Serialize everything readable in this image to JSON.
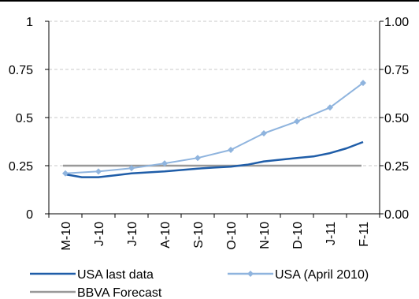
{
  "chart_data": {
    "type": "line",
    "categories": [
      "M-10",
      "J-10",
      "J-10",
      "A-10",
      "S-10",
      "O-10",
      "N-10",
      "D-10",
      "J-11",
      "F-11"
    ],
    "y_left": {
      "range": [
        0,
        1
      ],
      "ticks": [
        "0",
        "0.25",
        "0.5",
        "0.75",
        "1"
      ]
    },
    "y_right": {
      "range": [
        0,
        1
      ],
      "ticks": [
        "0.00",
        "0.25",
        "0.50",
        "0.75",
        "1.00"
      ]
    },
    "grid": "horizontal dashed",
    "legend_position": "bottom",
    "series": [
      {
        "name": "USA last data",
        "color": "#1f5da8",
        "marker": "none",
        "x": [
          0,
          0.5,
          1,
          1.5,
          2,
          3,
          4,
          4.5,
          5,
          5.5,
          6,
          7,
          7.5,
          8,
          8.5,
          9
        ],
        "values": [
          0.205,
          0.19,
          0.19,
          0.2,
          0.21,
          0.22,
          0.235,
          0.24,
          0.245,
          0.255,
          0.272,
          0.29,
          0.298,
          0.315,
          0.34,
          0.373
        ]
      },
      {
        "name": "USA (April 2010)",
        "color": "#8fb4de",
        "marker": "diamond",
        "x": [
          0,
          1,
          2,
          3,
          4,
          5,
          6,
          7,
          8,
          9
        ],
        "values": [
          0.21,
          0.22,
          0.237,
          0.262,
          0.29,
          0.332,
          0.418,
          0.48,
          0.552,
          0.68
        ]
      },
      {
        "name": "BBVA Forecast",
        "color": "#999999",
        "marker": "none",
        "x": [
          0,
          9
        ],
        "values": [
          0.25,
          0.25
        ]
      }
    ]
  }
}
